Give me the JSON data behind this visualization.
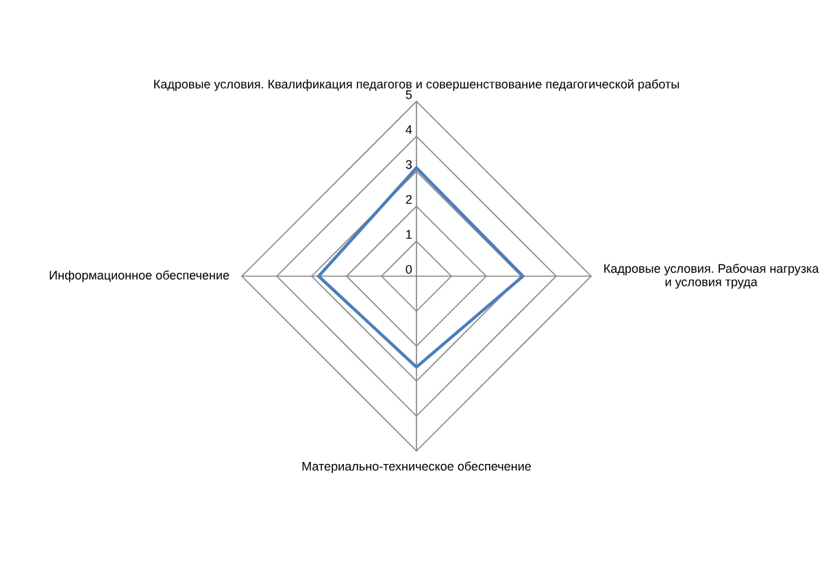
{
  "chart_data": {
    "type": "radar",
    "categories": [
      "Кадровые условия. Квалификация педагогов и совершенствование педагогической работы",
      "Кадровые условия. Рабочая нагрузка и условия труда",
      "Материально-техническое обеспечение",
      "Информационное обеспечение"
    ],
    "series": [
      {
        "color": "#4a7ebb",
        "values": [
          3.1,
          3.05,
          2.6,
          2.8
        ]
      }
    ],
    "ylim": [
      0,
      5
    ],
    "yticks": [
      0,
      1,
      2,
      3,
      4,
      5
    ],
    "grid": true
  }
}
